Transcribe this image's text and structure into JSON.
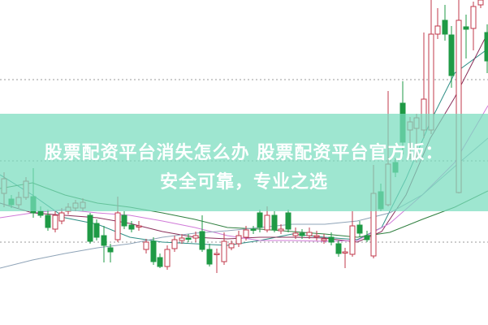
{
  "banner": {
    "title_line1": "股票配资平台消失怎么办 股票配资平台官方版：",
    "title_line2": "安全可靠，专业之选",
    "background_color": "#8fe0c6"
  },
  "colors": {
    "up_candle": "#c0394b",
    "down_candle": "#1f9a45",
    "ma_lines": [
      "#2f8f86",
      "#8a2f5a",
      "#d07ad8",
      "#2f7f3f",
      "#8fa4b8"
    ],
    "grid_dotted": "#9a9a9a"
  }
}
